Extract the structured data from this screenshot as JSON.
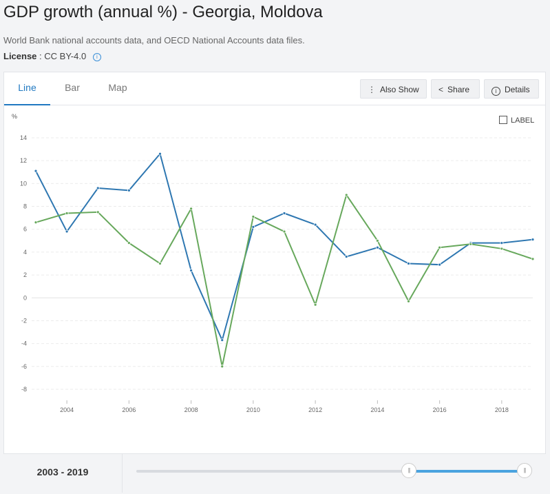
{
  "header": {
    "title": "GDP growth (annual %) - Georgia, Moldova",
    "source": "World Bank national accounts data, and OECD National Accounts data files.",
    "license_label": "License",
    "license_value": ": CC BY-4.0"
  },
  "tabs": [
    {
      "label": "Line",
      "active": true
    },
    {
      "label": "Bar",
      "active": false
    },
    {
      "label": "Map",
      "active": false
    }
  ],
  "toolbar": {
    "also_show": "Also Show",
    "share": "Share",
    "details": "Details"
  },
  "label_toggle": "LABEL",
  "footer": {
    "range_start": "2003",
    "range_sep": " - ",
    "range_end": "2019"
  },
  "colors": {
    "georgia": "#2e77b1",
    "moldova": "#67a85c",
    "accent": "#1f78c1"
  },
  "chart_data": {
    "type": "line",
    "ylabel": "%",
    "ylim": [
      -8,
      14
    ],
    "yticks": [
      -8,
      -6,
      -4,
      -2,
      0,
      2,
      4,
      6,
      8,
      10,
      12,
      14
    ],
    "xlim": [
      2003,
      2019
    ],
    "xticks": [
      2004,
      2006,
      2008,
      2010,
      2012,
      2014,
      2016,
      2018
    ],
    "grid": true,
    "x": [
      2003,
      2004,
      2005,
      2006,
      2007,
      2008,
      2009,
      2010,
      2011,
      2012,
      2013,
      2014,
      2015,
      2016,
      2017,
      2018,
      2019
    ],
    "series": [
      {
        "color": "#2e77b1",
        "values": [
          11.1,
          5.8,
          9.6,
          9.4,
          12.6,
          2.4,
          -3.7,
          6.2,
          7.4,
          6.4,
          3.6,
          4.4,
          3.0,
          2.9,
          4.8,
          4.8,
          5.1
        ]
      },
      {
        "color": "#67a85c",
        "values": [
          6.6,
          7.4,
          7.5,
          4.8,
          3.0,
          7.8,
          -6.0,
          7.1,
          5.8,
          -0.6,
          9.0,
          5.0,
          -0.3,
          4.4,
          4.7,
          4.3,
          3.4
        ]
      }
    ]
  }
}
